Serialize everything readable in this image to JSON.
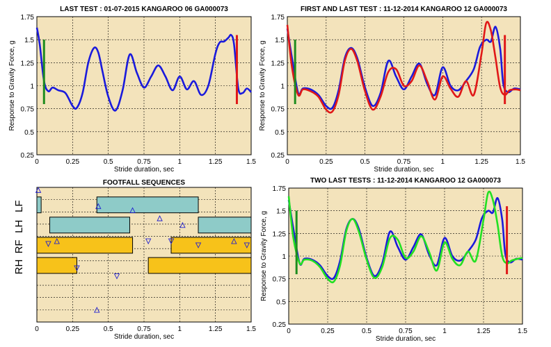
{
  "chart_data": [
    {
      "type": "line",
      "title": "LAST TEST : 01-07-2015 KANGAROO 06 GA000073",
      "xlabel": "Stride duration, sec",
      "ylabel": "Response to Gravity Force, g",
      "xlim": [
        0,
        1.5
      ],
      "ylim": [
        0.25,
        1.75
      ],
      "xticks": [
        "0",
        "0.25",
        "0.5",
        "0.75",
        "1",
        "1.25",
        "1.5"
      ],
      "yticks": [
        "0.25",
        "0.5",
        "0.75",
        "1",
        "1.25",
        "1.5",
        "1.75"
      ],
      "grid": true,
      "series": [
        {
          "color": "#1a1adc",
          "x": [
            0,
            0.02,
            0.05,
            0.08,
            0.11,
            0.15,
            0.2,
            0.25,
            0.28,
            0.32,
            0.36,
            0.4,
            0.43,
            0.46,
            0.5,
            0.55,
            0.6,
            0.65,
            0.7,
            0.75,
            0.8,
            0.85,
            0.9,
            0.95,
            1.0,
            1.05,
            1.1,
            1.15,
            1.2,
            1.25,
            1.28,
            1.31,
            1.34,
            1.36,
            1.38,
            1.41,
            1.44,
            1.47,
            1.5
          ],
          "y": [
            1.63,
            1.45,
            1.05,
            0.94,
            0.98,
            0.95,
            0.92,
            0.78,
            0.76,
            0.92,
            1.25,
            1.41,
            1.36,
            1.15,
            0.88,
            0.73,
            0.95,
            1.34,
            1.14,
            0.98,
            1.1,
            1.22,
            1.1,
            0.95,
            1.1,
            0.96,
            1.05,
            0.9,
            1.0,
            1.35,
            1.47,
            1.48,
            1.52,
            1.55,
            1.45,
            0.97,
            0.92,
            0.97,
            0.93
          ]
        }
      ],
      "markers": [
        {
          "x": 0.05,
          "y0": 0.8,
          "y1": 1.5,
          "color": "#1e8c1e"
        },
        {
          "x": 1.4,
          "y0": 0.8,
          "y1": 1.55,
          "color": "#e01818"
        }
      ]
    },
    {
      "type": "line",
      "title": "FIRST AND LAST TEST : 11-12-2014 KANGAROO 12 GA000073",
      "xlabel": "Stride duration, sec",
      "ylabel": "Response to Gravity Force, g",
      "xlim": [
        0,
        1.5
      ],
      "ylim": [
        0.25,
        1.75
      ],
      "xticks": [
        "0",
        "0.25",
        "0.5",
        "0.75",
        "1",
        "1.25",
        "1.5"
      ],
      "yticks": [
        "0.25",
        "0.5",
        "0.75",
        "1",
        "1.25",
        "1.5",
        "1.75"
      ],
      "grid": true,
      "series": [
        {
          "color": "#1a1adc",
          "x": [
            0,
            0.03,
            0.07,
            0.1,
            0.15,
            0.2,
            0.25,
            0.29,
            0.33,
            0.37,
            0.41,
            0.45,
            0.5,
            0.55,
            0.6,
            0.65,
            0.7,
            0.75,
            0.8,
            0.85,
            0.9,
            0.95,
            1.0,
            1.05,
            1.1,
            1.15,
            1.2,
            1.24,
            1.28,
            1.31,
            1.34,
            1.37,
            1.39,
            1.42,
            1.46,
            1.5
          ],
          "y": [
            1.62,
            1.3,
            0.92,
            0.97,
            0.96,
            0.9,
            0.78,
            0.76,
            0.95,
            1.3,
            1.41,
            1.3,
            0.98,
            0.78,
            0.92,
            1.27,
            1.1,
            0.96,
            1.1,
            1.24,
            1.02,
            0.9,
            1.2,
            1.0,
            0.95,
            1.05,
            1.18,
            1.42,
            1.5,
            1.48,
            1.64,
            1.4,
            1.02,
            0.93,
            0.97,
            0.96
          ]
        },
        {
          "color": "#e01818",
          "x": [
            0,
            0.03,
            0.07,
            0.1,
            0.15,
            0.2,
            0.25,
            0.29,
            0.33,
            0.37,
            0.41,
            0.45,
            0.5,
            0.55,
            0.6,
            0.65,
            0.7,
            0.75,
            0.8,
            0.85,
            0.9,
            0.95,
            1.0,
            1.05,
            1.1,
            1.15,
            1.2,
            1.25,
            1.28,
            1.31,
            1.34,
            1.37,
            1.4,
            1.43,
            1.47,
            1.5
          ],
          "y": [
            1.66,
            1.2,
            0.9,
            0.96,
            0.94,
            0.88,
            0.74,
            0.72,
            0.9,
            1.27,
            1.4,
            1.27,
            0.94,
            0.74,
            0.88,
            1.15,
            1.18,
            1.0,
            1.05,
            1.22,
            1.05,
            0.85,
            1.1,
            0.97,
            0.88,
            1.05,
            0.9,
            1.35,
            1.68,
            1.6,
            1.3,
            0.98,
            0.9,
            0.95,
            0.96,
            0.95
          ]
        }
      ],
      "markers": [
        {
          "x": 0.05,
          "y0": 0.8,
          "y1": 1.5,
          "color": "#1e8c1e"
        },
        {
          "x": 1.4,
          "y0": 0.8,
          "y1": 1.55,
          "color": "#e01818"
        }
      ]
    },
    {
      "type": "gantt",
      "title": "FOOTFALL SEQUENCES",
      "xlabel": "Stride duration, sec",
      "xlim": [
        0,
        1.5
      ],
      "xticks": [
        "0",
        "0.25",
        "0.5",
        "0.75",
        "1",
        "1.25",
        "1.5"
      ],
      "grid": true,
      "rows": [
        "LF",
        "LH",
        "RF",
        "RH"
      ],
      "bars": [
        {
          "row": "LF",
          "start": 0.0,
          "end": 0.03,
          "color": "#8ecbc8"
        },
        {
          "row": "LF",
          "start": 0.42,
          "end": 1.13,
          "color": "#8ecbc8"
        },
        {
          "row": "LH",
          "start": 0.09,
          "end": 0.65,
          "color": "#8ecbc8"
        },
        {
          "row": "LH",
          "start": 1.13,
          "end": 1.5,
          "color": "#8ecbc8"
        },
        {
          "row": "RF",
          "start": 0.0,
          "end": 0.67,
          "color": "#f7c21a"
        },
        {
          "row": "RF",
          "start": 0.94,
          "end": 1.5,
          "color": "#f7c21a"
        },
        {
          "row": "RH",
          "start": 0.0,
          "end": 0.28,
          "color": "#f7c21a"
        },
        {
          "row": "RH",
          "start": 0.78,
          "end": 1.5,
          "color": "#f7c21a"
        }
      ],
      "triangle_markers": [
        {
          "x": 0.01,
          "y": 0.02,
          "dir": "up"
        },
        {
          "x": 0.42,
          "y": 0.91,
          "dir": "up"
        },
        {
          "x": 0.43,
          "y": 0.14,
          "dir": "up"
        },
        {
          "x": 0.67,
          "y": 0.17,
          "dir": "up"
        },
        {
          "x": 0.86,
          "y": 0.23,
          "dir": "up"
        },
        {
          "x": 1.02,
          "y": 0.28,
          "dir": "up"
        },
        {
          "x": 0.14,
          "y": 0.4,
          "dir": "up"
        },
        {
          "x": 1.38,
          "y": 0.4,
          "dir": "up"
        },
        {
          "x": 0.08,
          "y": 0.42,
          "dir": "down"
        },
        {
          "x": 0.78,
          "y": 0.4,
          "dir": "down"
        },
        {
          "x": 0.94,
          "y": 0.4,
          "dir": "down"
        },
        {
          "x": 1.13,
          "y": 0.43,
          "dir": "down"
        },
        {
          "x": 1.47,
          "y": 0.43,
          "dir": "down"
        },
        {
          "x": 0.28,
          "y": 0.6,
          "dir": "down"
        },
        {
          "x": 0.56,
          "y": 0.66,
          "dir": "down"
        }
      ]
    },
    {
      "type": "line",
      "title": "TWO LAST TESTS : 11-12-2014 KANGAROO 12 GA000073",
      "xlabel": "Stride duration, sec",
      "ylabel": "Response to Gravity Force, g",
      "xlim": [
        0,
        1.5
      ],
      "ylim": [
        0.25,
        1.75
      ],
      "xticks": [
        "0",
        "0.25",
        "0.5",
        "0.75",
        "1",
        "1.25",
        "1.5"
      ],
      "yticks": [
        "0.25",
        "0.5",
        "0.75",
        "1",
        "1.25",
        "1.5",
        "1.75"
      ],
      "grid": true,
      "series": [
        {
          "color": "#1a1adc",
          "x": [
            0,
            0.03,
            0.07,
            0.1,
            0.15,
            0.2,
            0.25,
            0.29,
            0.33,
            0.37,
            0.41,
            0.45,
            0.5,
            0.55,
            0.6,
            0.65,
            0.7,
            0.75,
            0.8,
            0.85,
            0.9,
            0.95,
            1.0,
            1.05,
            1.1,
            1.15,
            1.2,
            1.24,
            1.28,
            1.31,
            1.34,
            1.37,
            1.39,
            1.42,
            1.46,
            1.5
          ],
          "y": [
            1.62,
            1.3,
            0.92,
            0.97,
            0.96,
            0.9,
            0.78,
            0.76,
            0.95,
            1.3,
            1.41,
            1.3,
            0.98,
            0.78,
            0.92,
            1.27,
            1.1,
            0.96,
            1.1,
            1.24,
            1.02,
            0.9,
            1.2,
            1.0,
            0.95,
            1.05,
            1.18,
            1.42,
            1.5,
            1.48,
            1.64,
            1.4,
            1.02,
            0.93,
            0.97,
            0.96
          ]
        },
        {
          "color": "#22e022",
          "x": [
            0,
            0.03,
            0.07,
            0.1,
            0.15,
            0.2,
            0.25,
            0.29,
            0.33,
            0.37,
            0.41,
            0.45,
            0.5,
            0.55,
            0.6,
            0.65,
            0.7,
            0.75,
            0.8,
            0.85,
            0.9,
            0.95,
            1.0,
            1.05,
            1.1,
            1.15,
            1.2,
            1.25,
            1.28,
            1.31,
            1.34,
            1.37,
            1.4,
            1.43,
            1.47,
            1.5
          ],
          "y": [
            1.66,
            1.2,
            0.92,
            0.96,
            0.95,
            0.88,
            0.75,
            0.72,
            0.9,
            1.28,
            1.41,
            1.27,
            0.96,
            0.76,
            0.88,
            1.2,
            1.18,
            0.98,
            1.05,
            1.22,
            1.05,
            0.84,
            1.15,
            0.97,
            0.9,
            1.05,
            0.95,
            1.4,
            1.7,
            1.62,
            1.35,
            1.0,
            0.92,
            0.95,
            0.97,
            0.98
          ]
        }
      ],
      "markers": [
        {
          "x": 0.05,
          "y0": 0.8,
          "y1": 1.5,
          "color": "#1e8c1e"
        },
        {
          "x": 1.4,
          "y0": 0.8,
          "y1": 1.55,
          "color": "#e01818"
        }
      ]
    }
  ]
}
